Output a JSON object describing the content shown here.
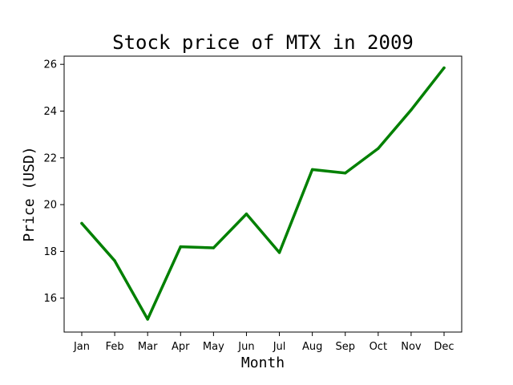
{
  "chart_data": {
    "type": "line",
    "title": "Stock price of MTX in 2009",
    "xlabel": "Month",
    "ylabel": "Price (USD)",
    "categories": [
      "Jan",
      "Feb",
      "Mar",
      "Apr",
      "May",
      "Jun",
      "Jul",
      "Aug",
      "Sep",
      "Oct",
      "Nov",
      "Dec"
    ],
    "series": [
      {
        "values": [
          19.2,
          17.6,
          15.1,
          18.2,
          18.15,
          19.6,
          17.95,
          21.5,
          21.35,
          22.4,
          24.05,
          25.85
        ],
        "color": "#008000"
      }
    ],
    "ylim": [
      14.55,
      26.35
    ],
    "yticks": [
      16,
      18,
      20,
      22,
      24,
      26
    ],
    "grid": false
  }
}
